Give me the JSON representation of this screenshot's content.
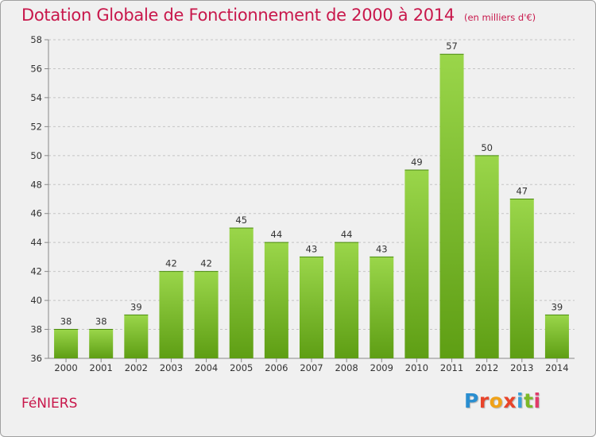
{
  "header": {
    "title": "Dotation Globale de Fonctionnement de 2000 à 2014",
    "subtitle": "(en milliers d'€)"
  },
  "commune": "FéNIERS",
  "logo": {
    "letters": [
      "P",
      "r",
      "o",
      "x",
      "i",
      "t",
      "i"
    ],
    "colors": [
      "#2a8ed0",
      "#e8442a",
      "#f0a218",
      "#e8442a",
      "#3a9fd8",
      "#7cb828",
      "#e03a6a"
    ]
  },
  "chart_data": {
    "type": "bar",
    "title": "Dotation Globale de Fonctionnement de 2000 à 2014",
    "subtitle": "(en milliers d'€)",
    "categories": [
      "2000",
      "2001",
      "2002",
      "2003",
      "2004",
      "2005",
      "2006",
      "2007",
      "2008",
      "2009",
      "2010",
      "2011",
      "2012",
      "2013",
      "2014"
    ],
    "values": [
      38,
      38,
      39,
      42,
      42,
      45,
      44,
      43,
      44,
      43,
      49,
      57,
      50,
      47,
      39
    ],
    "data_labels": [
      "38",
      "38",
      "39",
      "42",
      "42",
      "45",
      "44",
      "43",
      "44",
      "43",
      "49",
      "57",
      "50",
      "47",
      "39"
    ],
    "ylim": [
      36,
      58
    ],
    "yticks": [
      36,
      38,
      40,
      42,
      44,
      46,
      48,
      50,
      52,
      54,
      56,
      58
    ],
    "xlabel": "",
    "ylabel": "",
    "grid": true,
    "legend": "none",
    "bar_color": "#7cc030"
  }
}
